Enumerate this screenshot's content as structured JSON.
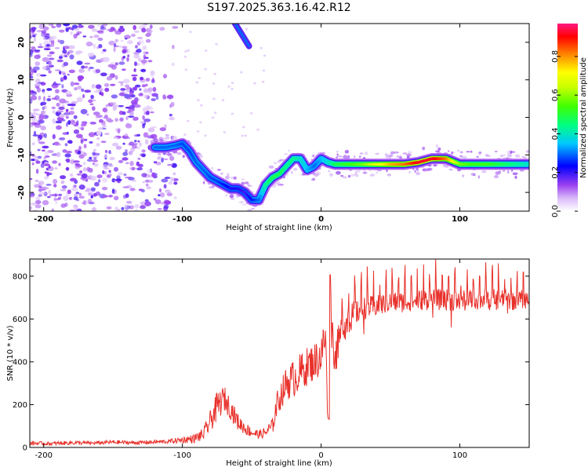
{
  "title": "S197.2025.363.16.42.R12",
  "chart_data": [
    {
      "type": "heatmap",
      "name": "spectrogram",
      "xlabel": "Height of straight line (km)",
      "ylabel": "Frequency (Hz)",
      "xlim": [
        -210,
        150
      ],
      "ylim": [
        -25,
        25
      ],
      "xticks": [
        -200,
        -100,
        0,
        100
      ],
      "yticks": [
        -20,
        -10,
        0,
        10,
        20
      ],
      "colorbar": {
        "label": "Normalized spectral amplitude",
        "range": [
          0,
          0.97
        ],
        "ticks": [
          0.0,
          0.2,
          0.4,
          0.6,
          0.8
        ],
        "tick_labels": [
          "0.0",
          "0.2",
          "0.4",
          "0.6",
          "0.8"
        ]
      },
      "ridge": {
        "x": [
          -120,
          -112,
          -105,
          -100,
          -95,
          -90,
          -85,
          -80,
          -75,
          -70,
          -65,
          -60,
          -55,
          -50,
          -45,
          -40,
          -35,
          -30,
          -25,
          -20,
          -15,
          -10,
          -5,
          0,
          5,
          10,
          20,
          30,
          40,
          50,
          60,
          70,
          80,
          90,
          100,
          110,
          120,
          130,
          140,
          150
        ],
        "y": [
          -8,
          -8,
          -7.5,
          -7,
          -9,
          -12,
          -14,
          -16,
          -17,
          -18,
          -19,
          -19,
          -20,
          -22,
          -22,
          -18,
          -16,
          -15,
          -13,
          -11,
          -11,
          -14,
          -13,
          -11,
          -12,
          -12.5,
          -12.5,
          -12.5,
          -12.5,
          -12.5,
          -12.5,
          -12,
          -11,
          -11,
          -12.5,
          -12.5,
          -12.5,
          -12.5,
          -12.5,
          -12.5
        ],
        "amplitude": [
          0.3,
          0.3,
          0.3,
          0.28,
          0.28,
          0.3,
          0.3,
          0.28,
          0.28,
          0.25,
          0.22,
          0.22,
          0.2,
          0.25,
          0.3,
          0.45,
          0.5,
          0.5,
          0.45,
          0.45,
          0.4,
          0.35,
          0.3,
          0.35,
          0.4,
          0.5,
          0.55,
          0.6,
          0.7,
          0.8,
          0.85,
          0.95,
          0.95,
          0.85,
          0.6,
          0.55,
          0.55,
          0.5,
          0.45,
          0.4
        ]
      },
      "upper_streak": {
        "x": [
          -62,
          -52
        ],
        "y": [
          25,
          19
        ]
      }
    },
    {
      "type": "line",
      "name": "snr",
      "xlabel": "Height of straight line (km)",
      "ylabel": "SNR (10 * v/v)",
      "xlim": [
        -210,
        150
      ],
      "ylim": [
        0,
        880
      ],
      "xticks": [
        -200,
        -100,
        0,
        100
      ],
      "yticks": [
        0,
        200,
        400,
        600,
        800
      ],
      "color": "#e8302a",
      "series": [
        {
          "name": "SNR",
          "x": [
            -210,
            -195,
            -180,
            -165,
            -150,
            -135,
            -120,
            -110,
            -100,
            -92,
            -85,
            -80,
            -75,
            -70,
            -65,
            -60,
            -55,
            -50,
            -45,
            -40,
            -35,
            -32,
            -28,
            -25,
            -20,
            -15,
            -10,
            -5,
            0,
            3,
            5,
            7,
            10,
            15,
            20,
            25,
            30,
            40,
            50,
            60,
            70,
            80,
            90,
            100,
            110,
            120,
            130,
            140,
            150
          ],
          "values": [
            20,
            18,
            22,
            20,
            25,
            22,
            25,
            28,
            35,
            40,
            60,
            120,
            190,
            230,
            180,
            120,
            90,
            70,
            60,
            70,
            100,
            200,
            260,
            300,
            320,
            350,
            380,
            400,
            430,
            520,
            200,
            600,
            420,
            550,
            600,
            630,
            650,
            660,
            680,
            680,
            690,
            690,
            690,
            680,
            690,
            690,
            690,
            690,
            690
          ],
          "noise": [
            10,
            8,
            10,
            8,
            10,
            8,
            10,
            10,
            15,
            20,
            30,
            50,
            70,
            60,
            50,
            40,
            30,
            25,
            20,
            25,
            40,
            60,
            70,
            80,
            90,
            90,
            90,
            90,
            100,
            100,
            80,
            100,
            90,
            80,
            70,
            60,
            55,
            50,
            50,
            50,
            50,
            50,
            50,
            50,
            50,
            50,
            50,
            50,
            40
          ],
          "spike_period": 4.5,
          "spike_from": 15,
          "spike_height": 150
        }
      ]
    }
  ]
}
